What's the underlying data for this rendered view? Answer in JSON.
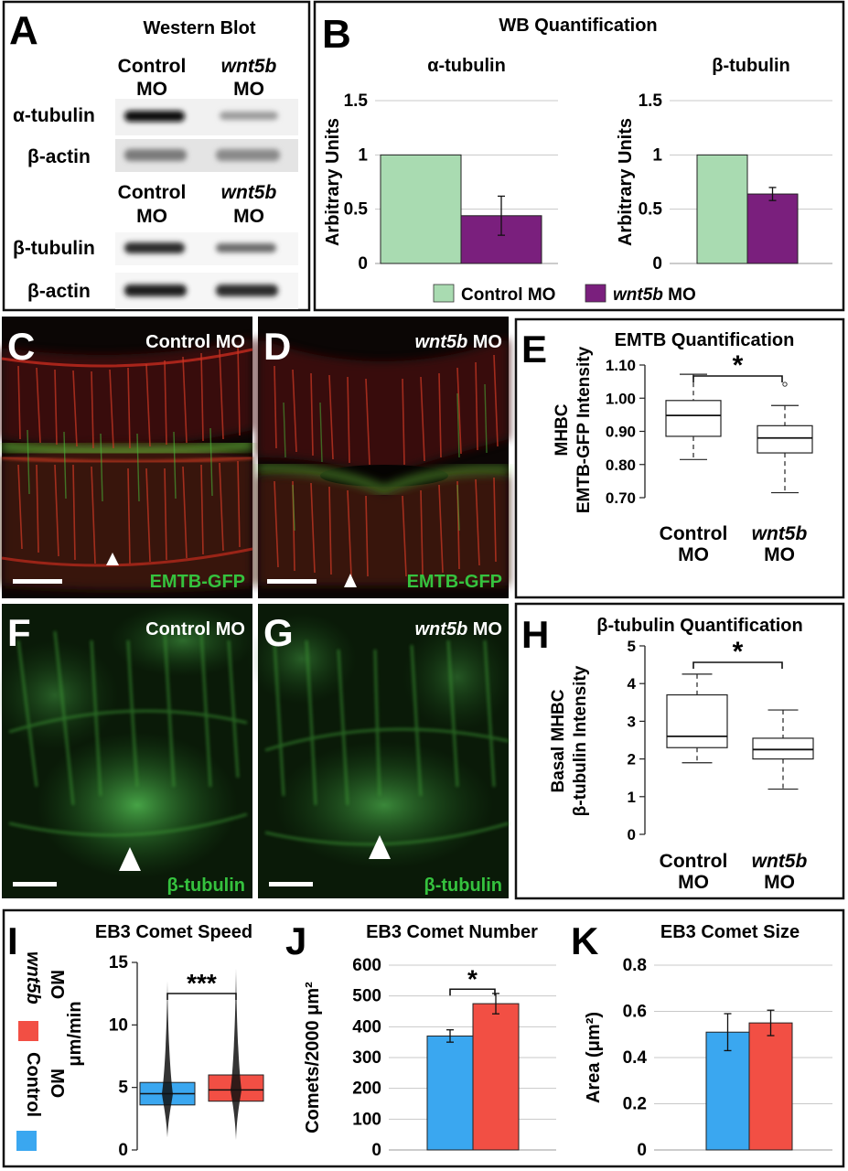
{
  "colors": {
    "control_green": "#a9dbb1",
    "wnt5b_purple": "#7a1f7d",
    "control_blue": "#3aa7f0",
    "wnt5b_red": "#f24f44",
    "emtb_green": "#35c23e",
    "cell_red": "#d2282a"
  },
  "panelA": {
    "letter": "A",
    "title": "Western Blot",
    "col1_line1": "Control",
    "col1_line2": "MO",
    "col2_line1": "wnt5b",
    "col2_line2": "MO",
    "row_alpha": "α-tubulin",
    "row_actin1": "β-actin",
    "row_beta": "β-tubulin",
    "row_actin2": "β-actin"
  },
  "panelB": {
    "letter": "B",
    "title": "WB Quantification",
    "ylabel": "Arbitrary Units",
    "legend_control": "Control MO",
    "legend_wnt5b_italic": "wnt5b",
    "legend_wnt5b_suffix": " MO",
    "chart_data": [
      {
        "type": "bar",
        "title": "α-tubulin",
        "ylabel": "Arbitrary Units",
        "ylim": [
          0,
          1.5
        ],
        "ticks": [
          "0",
          "0.5",
          "1",
          "1.5"
        ],
        "categories": [
          "Control MO",
          "wnt5b MO"
        ],
        "values": [
          1.0,
          0.44
        ],
        "errors": [
          0,
          0.18
        ]
      },
      {
        "type": "bar",
        "title": "β-tubulin",
        "ylabel": "Arbitrary Units",
        "ylim": [
          0,
          1.5
        ],
        "ticks": [
          "0",
          "0.5",
          "1",
          "1.5"
        ],
        "categories": [
          "Control MO",
          "wnt5b MO"
        ],
        "values": [
          1.0,
          0.64
        ],
        "errors": [
          0,
          0.06
        ]
      }
    ]
  },
  "panelC": {
    "letter": "C",
    "label": "Control MO",
    "channel": "EMTB-GFP"
  },
  "panelD": {
    "letter": "D",
    "label_italic": "wnt5b",
    "label_suffix": " MO",
    "channel": "EMTB-GFP"
  },
  "panelE": {
    "letter": "E",
    "title": "EMTB Quantification",
    "ylabel_line1": "MHBC",
    "ylabel_line2": "EMTB-GFP Intensity",
    "star": "*",
    "xcat1_line1": "Control",
    "xcat1_line2": "MO",
    "xcat2_line1": "wnt5b",
    "xcat2_line2": "MO",
    "chart_data": {
      "type": "box",
      "ylim": [
        0.7,
        1.1
      ],
      "ticks": [
        "0.70",
        "0.80",
        "0.90",
        "1.00",
        "1.10"
      ],
      "boxes": [
        {
          "name": "Control MO",
          "min": 0.815,
          "q1": 0.885,
          "median": 0.948,
          "q3": 0.993,
          "max": 1.072,
          "outliers": []
        },
        {
          "name": "wnt5b MO",
          "min": 0.715,
          "q1": 0.835,
          "median": 0.88,
          "q3": 0.917,
          "max": 0.978,
          "outliers": [
            1.042
          ]
        }
      ]
    }
  },
  "panelF": {
    "letter": "F",
    "label": "Control MO",
    "channel": "β-tubulin"
  },
  "panelG": {
    "letter": "G",
    "label_italic": "wnt5b",
    "label_suffix": " MO",
    "channel": "β-tubulin"
  },
  "panelH": {
    "letter": "H",
    "title": "β-tubulin Quantification",
    "ylabel_line1": "Basal MHBC",
    "ylabel_line2": "β-tubulin Intensity",
    "star": "*",
    "xcat1_line1": "Control",
    "xcat1_line2": "MO",
    "xcat2_line1": "wnt5b",
    "xcat2_line2": "MO",
    "chart_data": {
      "type": "box",
      "ylim": [
        0,
        5
      ],
      "ticks": [
        "0",
        "1",
        "2",
        "3",
        "4",
        "5"
      ],
      "boxes": [
        {
          "name": "Control MO",
          "min": 1.9,
          "q1": 2.3,
          "median": 2.6,
          "q3": 3.7,
          "max": 4.25,
          "outliers": []
        },
        {
          "name": "wnt5b MO",
          "min": 1.2,
          "q1": 2.0,
          "median": 2.25,
          "q3": 2.55,
          "max": 3.3,
          "outliers": []
        }
      ]
    }
  },
  "panelI": {
    "letter": "I",
    "title": "EB3 Comet Speed",
    "ylabel": "μm/min",
    "star": "***",
    "legend_wnt5b_italic": "wnt5b",
    "legend_wnt5b_suffix": "MO",
    "legend_control": "Control",
    "legend_control_suffix": "MO",
    "chart_data": {
      "type": "box",
      "ylim": [
        0,
        15
      ],
      "ticks": [
        "0",
        "5",
        "10",
        "15"
      ],
      "boxes": [
        {
          "name": "Control MO",
          "min": 1.0,
          "q1": 3.6,
          "median": 4.5,
          "q3": 5.4,
          "max": 13.5
        },
        {
          "name": "wnt5b MO",
          "min": 0.8,
          "q1": 3.9,
          "median": 4.8,
          "q3": 6.0,
          "max": 14.5
        }
      ]
    }
  },
  "panelJ": {
    "letter": "J",
    "title": "EB3 Comet Number",
    "ylabel": "Comets/2000 μm²",
    "star": "*",
    "chart_data": {
      "type": "bar",
      "ylim": [
        0,
        600
      ],
      "ticks": [
        "0",
        "100",
        "200",
        "300",
        "400",
        "500",
        "600"
      ],
      "categories": [
        "Control MO",
        "wnt5b MO"
      ],
      "values": [
        370,
        475
      ],
      "errors": [
        20,
        33
      ]
    }
  },
  "panelK": {
    "letter": "K",
    "title": "EB3 Comet Size",
    "ylabel": "Area (μm²)",
    "chart_data": {
      "type": "bar",
      "ylim": [
        0,
        0.8
      ],
      "ticks": [
        "0",
        "0.2",
        "0.4",
        "0.6",
        "0.8"
      ],
      "categories": [
        "Control MO",
        "wnt5b MO"
      ],
      "values": [
        0.51,
        0.55
      ],
      "errors": [
        0.08,
        0.055
      ]
    }
  }
}
